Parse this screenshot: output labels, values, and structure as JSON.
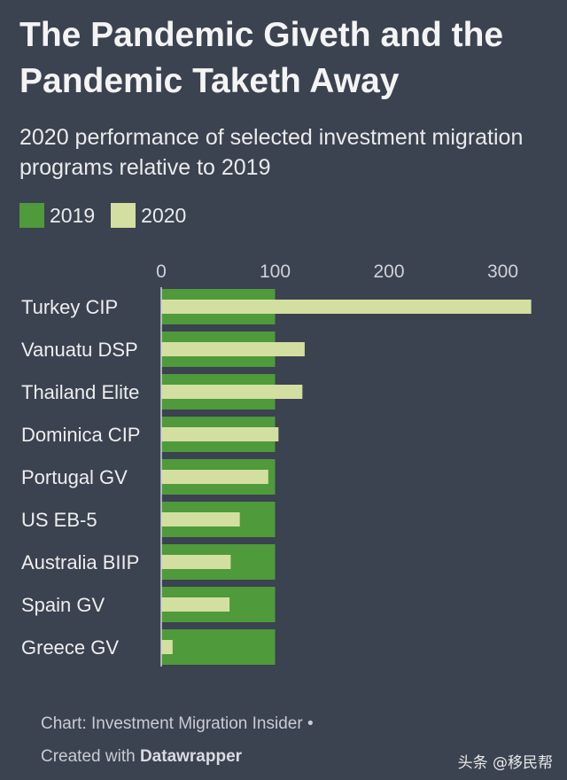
{
  "title": "The Pandemic Giveth and the Pandemic Taketh Away",
  "subtitle": "2020 performance of selected investment migration programs relative to 2019",
  "legend": {
    "label_2019": "2019",
    "label_2020": "2020"
  },
  "colors": {
    "c2019": "#4f9a3a",
    "c2020": "#d3dfa0",
    "background": "#3b4250"
  },
  "footer": {
    "source": "Chart: Investment Migration Insider •",
    "created_prefix": "Created with",
    "created_tool": "Datawrapper"
  },
  "watermark": "头条 @移民帮",
  "chart_data": {
    "type": "bar",
    "orientation": "horizontal",
    "title": "The Pandemic Giveth and the Pandemic Taketh Away",
    "subtitle": "2020 performance of selected investment migration programs relative to 2019",
    "categories": [
      "Turkey CIP",
      "Vanuatu DSP",
      "Thailand Elite",
      "Dominica CIP",
      "Portugal GV",
      "US EB-5",
      "Australia BIIP",
      "Spain GV",
      "Greece GV"
    ],
    "series": [
      {
        "name": "2019",
        "values": [
          100,
          100,
          100,
          100,
          100,
          100,
          100,
          100,
          100
        ]
      },
      {
        "name": "2020",
        "values": [
          325,
          126,
          124,
          103,
          94,
          69,
          61,
          60,
          10
        ]
      }
    ],
    "xlim": [
      0,
      325
    ],
    "xticks": [
      0,
      100,
      200,
      300
    ],
    "legend_position": "top-left",
    "grid": false
  }
}
